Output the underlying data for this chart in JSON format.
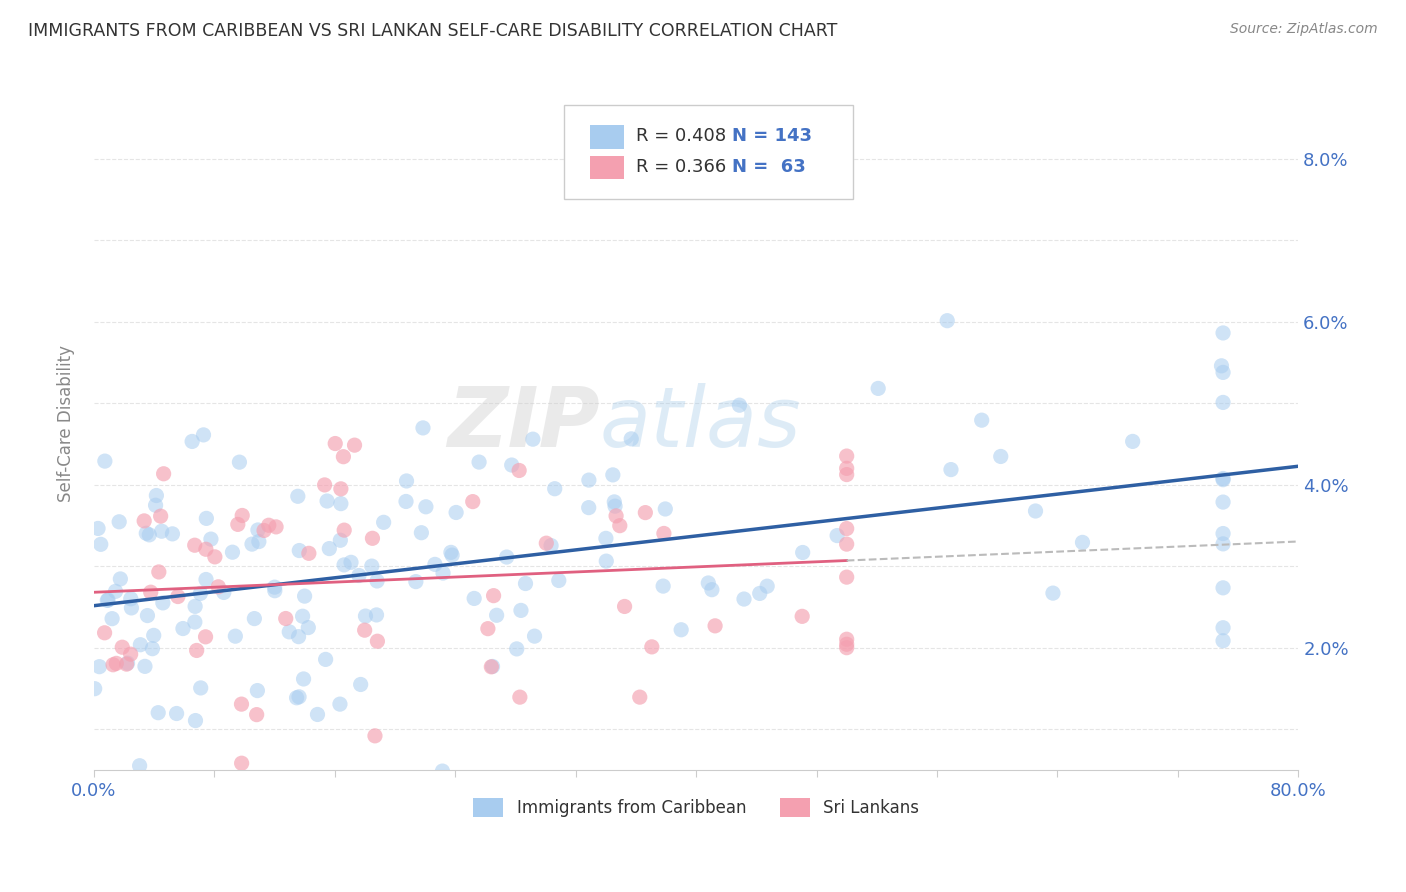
{
  "title": "IMMIGRANTS FROM CARIBBEAN VS SRI LANKAN SELF-CARE DISABILITY CORRELATION CHART",
  "source": "Source: ZipAtlas.com",
  "ylabel": "Self-Care Disability",
  "xlim": [
    0.0,
    0.8
  ],
  "ylim": [
    0.005,
    0.09
  ],
  "series1": {
    "name": "Immigrants from Caribbean",
    "dot_color": "#a8ccef",
    "line_color": "#2e5fa3",
    "R": 0.408,
    "N": 143,
    "x_max": 0.75
  },
  "series2": {
    "name": "Sri Lankans",
    "dot_color": "#f4a0b0",
    "line_color": "#e06080",
    "dash_color": "#bbbbbb",
    "R": 0.366,
    "N": 63,
    "x_max": 0.5
  },
  "watermark": "ZIPAtlas",
  "background_color": "#ffffff",
  "grid_color": "#e5e5e5",
  "title_color": "#333333",
  "axis_tick_color": "#4472c4",
  "ylabel_color": "#888888"
}
